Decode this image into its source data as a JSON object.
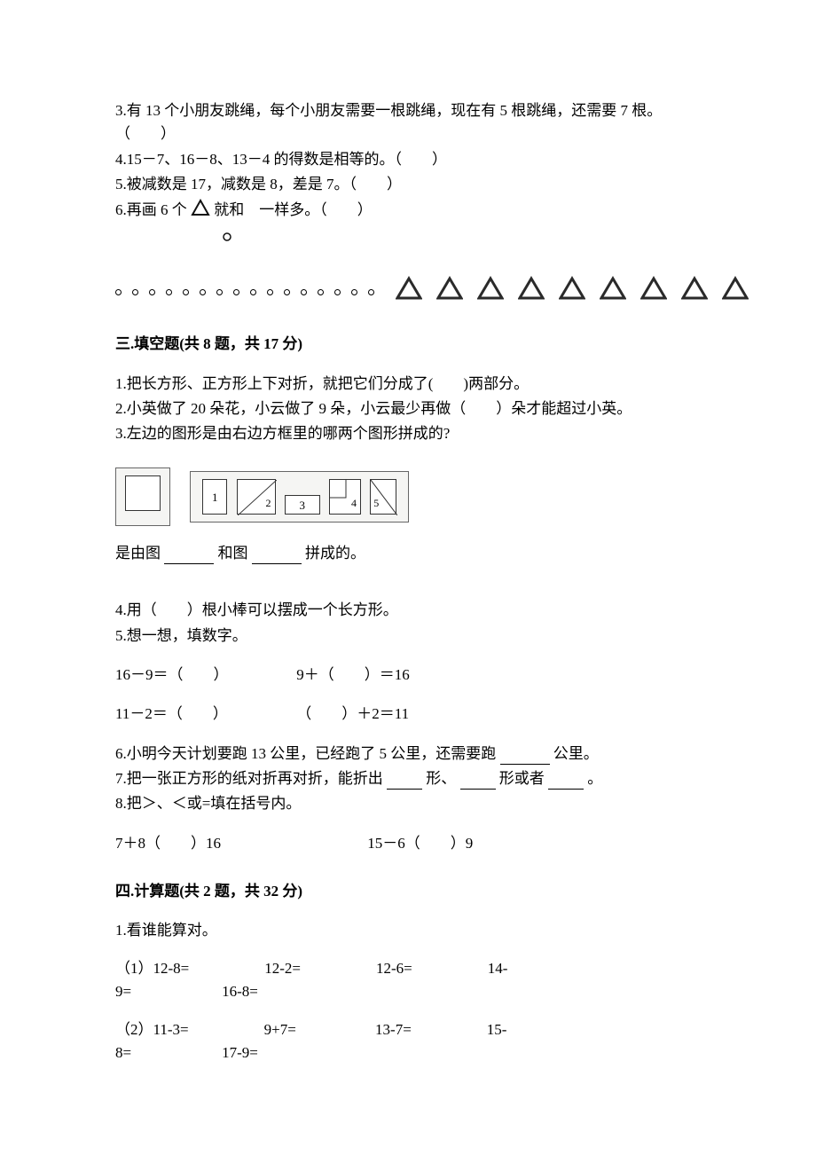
{
  "q3": "3.有 13 个小朋友跳绳，每个小朋友需要一根跳绳，现在有 5 根跳绳，还需要 7 根。（　　）",
  "q4": "4.15－7、16－8、13－4 的得数是相等的。（　　）",
  "q5": "5.被减数是 17，减数是 8，差是 7。（　　）",
  "q6a": "6.再画 6 个",
  "q6b": "就和　一样多。（　　）",
  "sec3": "三.填空题(共 8 题，共 17 分)",
  "f1": "1.把长方形、正方形上下对折，就把它们分成了(　　)两部分。",
  "f2": "2.小英做了 20 朵花，小云做了 9 朵，小云最少再做（　　）朵才能超过小英。",
  "f3": "3.左边的图形是由右边方框里的哪两个图形拼成的?",
  "f3_ans_a": "是由图",
  "f3_ans_b": "和图",
  "f3_ans_c": "拼成的。",
  "f4": "4.用（　　）根小棒可以摆成一个长方形。",
  "f5": "5.想一想，填数字。",
  "f5_r1a": "16－9＝（　　）",
  "f5_r1b": "9＋（　　）＝16",
  "f5_r2a": "11－2＝（　　）",
  "f5_r2b": "（　　）＋2＝11",
  "f6a": "6.小明今天计划要跑 13 公里，已经跑了 5 公里，还需要跑",
  "f6b": "公里。",
  "f7a": "7.把一张正方形的纸对折再对折，能折出",
  "f7b": "形、",
  "f7c": "形或者",
  "f7d": "。",
  "f8": "8.把＞、＜或=填在括号内。",
  "f8_a": "7＋8（　　）16",
  "f8_b": "15－6（　　）9",
  "sec4": "四.计算题(共 2 题，共 32 分)",
  "c1": "1.看谁能算对。",
  "c1_r1": "（1）12-8=　　　　　12-2=　　　　　12-6=　　　　　14-",
  "c1_r1b": "9=　　　　　　16-8=",
  "c1_r2": "（2）11-3=　　　　　9+7=　　　　　 13-7=　　　　　15-",
  "c1_r2b": "8=　　　　　　17-9=",
  "shapes": {
    "circles": 16,
    "triangles": 9,
    "tri_stroke": "#2a2a2a",
    "tri_fill": "#ffffff"
  },
  "icons": {
    "small_tri_stroke": "#1a1a1a",
    "small_circle_stroke": "#1a1a1a"
  },
  "puzzle": {
    "labels": [
      "1",
      "2",
      "3",
      "4",
      "5"
    ]
  }
}
